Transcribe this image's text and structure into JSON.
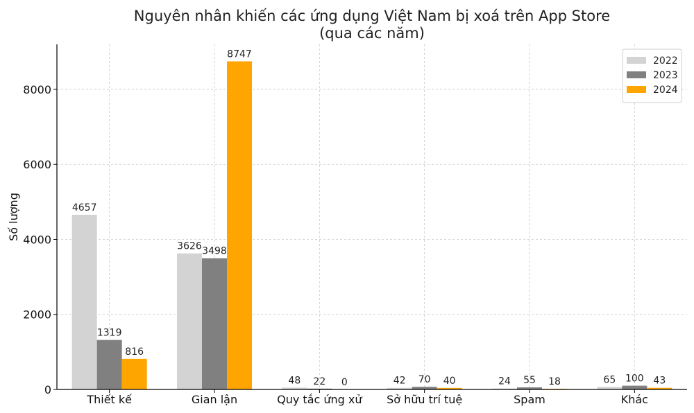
{
  "chart_data": {
    "type": "bar",
    "title": "Nguyên nhân khiến các ứng dụng Việt Nam bị xoá trên App Store",
    "subtitle": "(qua các năm)",
    "xlabel": "",
    "ylabel": "Số lượng",
    "categories": [
      "Thiết kế",
      "Gian lận",
      "Quy tắc ứng xử",
      "Sở hữu trí tuệ",
      "Spam",
      "Khác"
    ],
    "series": [
      {
        "name": "2022",
        "color": "#d3d3d3",
        "values": [
          4657,
          3626,
          48,
          42,
          24,
          65
        ]
      },
      {
        "name": "2023",
        "color": "#808080",
        "values": [
          1319,
          3498,
          22,
          70,
          55,
          100
        ]
      },
      {
        "name": "2024",
        "color": "#ffa500",
        "values": [
          816,
          8747,
          0,
          40,
          18,
          43
        ]
      }
    ],
    "ylim": [
      0,
      9200
    ],
    "yticks": [
      0,
      2000,
      4000,
      6000,
      8000
    ],
    "grid": true,
    "legend_position": "top-right"
  }
}
